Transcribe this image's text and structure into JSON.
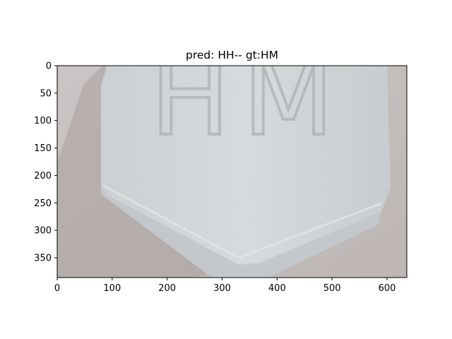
{
  "figure": {
    "title": "pred: HH-- gt:HM",
    "embossed_text": "HM"
  },
  "axes": {
    "x_ticks": [
      0,
      100,
      200,
      300,
      400,
      500,
      600
    ],
    "y_ticks": [
      0,
      50,
      100,
      150,
      200,
      250,
      300,
      350
    ],
    "x_range": [
      0,
      636
    ],
    "y_range": [
      0,
      386
    ],
    "y_inverted": true
  },
  "colors": {
    "background": "#c7c2c1",
    "pill": "#d4d8dc",
    "pill_edge": "#c0c4c8",
    "shadow": "#a59c9a"
  }
}
